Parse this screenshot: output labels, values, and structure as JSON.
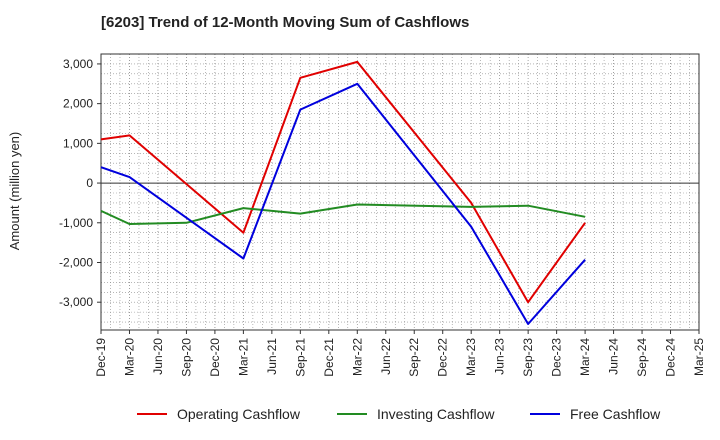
{
  "title": "[6203]  Trend of 12-Month Moving Sum of Cashflows",
  "chart_data": {
    "type": "line",
    "title": "[6203]  Trend of 12-Month Moving Sum of Cashflows",
    "xlabel": "",
    "ylabel": "Amount (million yen)",
    "ylim": [
      -3700,
      3250
    ],
    "yticks": [
      3000,
      2000,
      1000,
      0,
      -1000,
      -2000,
      -3000
    ],
    "ytick_labels": [
      "3,000",
      "2,000",
      "1,000",
      "0",
      "-1,000",
      "-2,000",
      "-3,000"
    ],
    "categories": [
      "Dec-19",
      "Mar-20",
      "Jun-20",
      "Sep-20",
      "Dec-20",
      "Mar-21",
      "Jun-21",
      "Sep-21",
      "Dec-21",
      "Mar-22",
      "Jun-22",
      "Sep-22",
      "Dec-22",
      "Mar-23",
      "Jun-23",
      "Sep-23",
      "Dec-23",
      "Mar-24",
      "Jun-24",
      "Sep-24",
      "Dec-24",
      "Mar-25"
    ],
    "grid": true,
    "legend_position": "bottom",
    "series": [
      {
        "name": "Operating Cashflow",
        "color": "#e00000",
        "values": [
          1100,
          1200,
          null,
          null,
          null,
          -1250,
          null,
          2650,
          null,
          3050,
          null,
          null,
          null,
          -500,
          null,
          -3000,
          null,
          -1000,
          null,
          null,
          null,
          null
        ]
      },
      {
        "name": "Investing Cashflow",
        "color": "#228b22",
        "values": [
          -700,
          -1030,
          null,
          -1000,
          null,
          -630,
          null,
          -770,
          null,
          -540,
          null,
          null,
          null,
          -600,
          null,
          -570,
          null,
          -850,
          null,
          null,
          null,
          null
        ]
      },
      {
        "name": "Free Cashflow",
        "color": "#0000dd",
        "values": [
          400,
          150,
          null,
          null,
          null,
          -1900,
          null,
          1850,
          null,
          2500,
          null,
          null,
          null,
          -1100,
          null,
          -3550,
          null,
          -1930,
          null,
          null,
          null,
          null
        ]
      }
    ]
  }
}
